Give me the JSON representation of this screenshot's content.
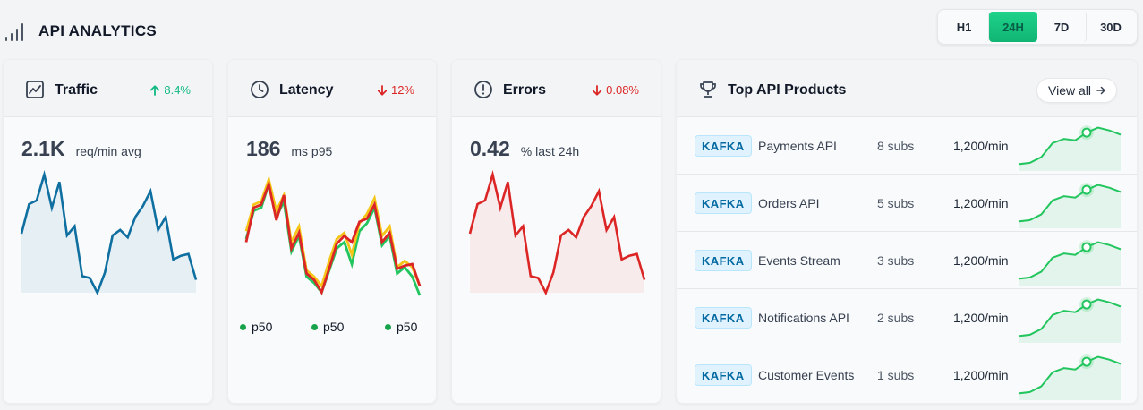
{
  "header": {
    "title": "API ANALYTICS",
    "ranges": [
      "H1",
      "24H",
      "7D",
      "30D"
    ],
    "active_range": "24H"
  },
  "colors": {
    "accent_green": "#10b981",
    "traffic_line": "#0e6fa0",
    "errors_line": "#dc2626",
    "negative": "#dc2626",
    "positive": "#10b981"
  },
  "cards": {
    "traffic": {
      "title": "Traffic",
      "icon": "trending-chart-icon",
      "delta": "8.4%",
      "delta_direction": "up",
      "value": "2.1K",
      "unit": "req/min avg",
      "series": [
        48,
        64,
        66,
        80,
        62,
        76,
        47,
        52,
        25,
        24,
        16,
        27,
        47,
        50,
        46,
        57,
        63,
        71,
        50,
        57,
        34,
        36,
        37,
        23
      ]
    },
    "latency": {
      "title": "Latency",
      "icon": "clock-icon",
      "delta": "12%",
      "delta_direction": "down",
      "value": "186",
      "unit": "ms p95",
      "series": [
        {
          "name": "p50",
          "color": "#22c55e",
          "values": [
            50,
            68,
            70,
            85,
            64,
            74,
            42,
            52,
            26,
            22,
            16,
            30,
            44,
            48,
            34,
            55,
            60,
            70,
            46,
            52,
            28,
            32,
            26,
            14
          ]
        },
        {
          "name": "p50",
          "color": "#f5c518",
          "values": [
            55,
            72,
            74,
            88,
            68,
            78,
            48,
            58,
            30,
            26,
            20,
            36,
            50,
            54,
            40,
            60,
            66,
            76,
            52,
            58,
            32,
            36,
            32,
            20
          ]
        },
        {
          "name": "p50",
          "color": "#dc2626",
          "values": [
            48,
            70,
            72,
            85,
            62,
            78,
            44,
            54,
            28,
            24,
            16,
            31,
            47,
            52,
            48,
            61,
            63,
            72,
            48,
            54,
            31,
            33,
            34,
            20
          ]
        }
      ],
      "legend": [
        {
          "label": "p50",
          "color": "#16a34a"
        },
        {
          "label": "p50",
          "color": "#16a34a"
        },
        {
          "label": "p50",
          "color": "#16a34a"
        }
      ]
    },
    "errors": {
      "title": "Errors",
      "icon": "alert-circle-icon",
      "delta": "0.08%",
      "delta_direction": "down",
      "value": "0.42",
      "unit": "% last 24h",
      "series": [
        48,
        64,
        66,
        80,
        62,
        76,
        47,
        52,
        25,
        24,
        16,
        27,
        47,
        50,
        46,
        57,
        63,
        71,
        50,
        57,
        34,
        36,
        37,
        23
      ]
    }
  },
  "products": {
    "title": "Top API Products",
    "icon": "trophy-icon",
    "view_all_label": "View all",
    "rows": [
      {
        "badge": "KAFKA",
        "name": "Payments API",
        "subs": "8 subs",
        "rate": "1,200/min"
      },
      {
        "badge": "KAFKA",
        "name": "Orders API",
        "subs": "5 subs",
        "rate": "1,200/min"
      },
      {
        "badge": "KAFKA",
        "name": "Events Stream",
        "subs": "3 subs",
        "rate": "1,200/min"
      },
      {
        "badge": "KAFKA",
        "name": "Notifications API",
        "subs": "2 subs",
        "rate": "1,200/min"
      },
      {
        "badge": "KAFKA",
        "name": "Customer Events",
        "subs": "1 subs",
        "rate": "1,200/min"
      }
    ],
    "row_spark": [
      10,
      12,
      20,
      40,
      46,
      44,
      55,
      62,
      58,
      52
    ]
  }
}
